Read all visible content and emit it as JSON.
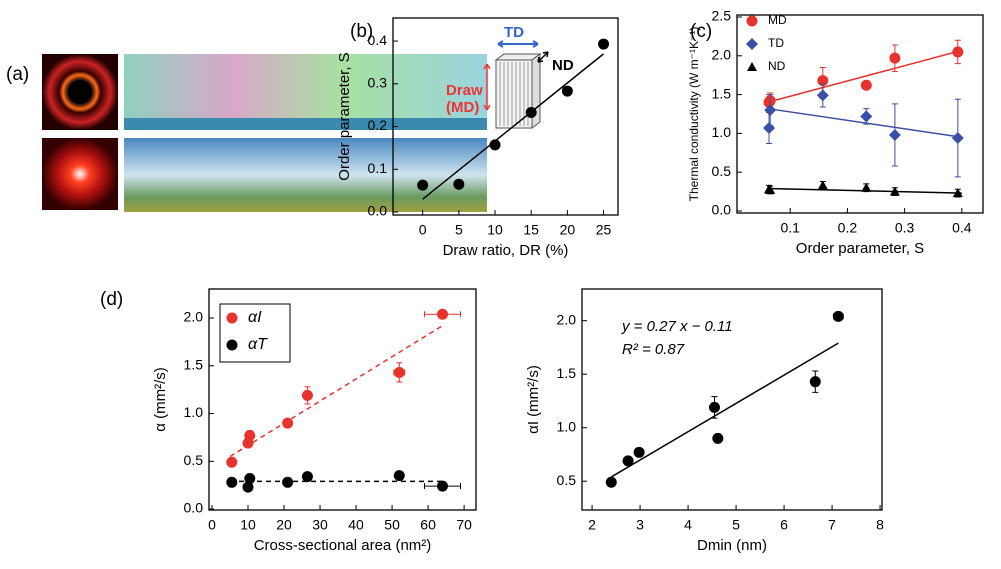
{
  "panel_a": {
    "label": "(a)"
  },
  "chart_data": [
    {
      "type": "scatter",
      "panel_label": "(b)",
      "x_label": "Draw ratio, DR (%)",
      "y_label": "Order parameter, S",
      "annotations": [
        "TD",
        "ND",
        "Draw",
        "(MD)"
      ],
      "xlim": [
        -4.1,
        27
      ],
      "ylim": [
        -0.007,
        0.454
      ],
      "xticks": [
        0,
        5,
        10,
        15,
        20,
        25
      ],
      "yticks": [
        {
          "value": 0,
          "label": "0.0"
        },
        0.1,
        0.2,
        0.3,
        0.4
      ],
      "series": [
        {
          "color": "#000000",
          "marker": "circle",
          "x": [
            0,
            5,
            10,
            15,
            20,
            25
          ],
          "values": [
            0.063,
            0.065,
            0.157,
            0.233,
            0.283,
            0.393
          ],
          "fit": {
            "x": [
              0,
              25
            ],
            "y": [
              0.03,
              0.37
            ]
          }
        }
      ]
    },
    {
      "type": "scatter",
      "panel_label": "(c)",
      "x_label": "Order parameter, S",
      "y_label": "Thermal conductivity (W m⁻¹K⁻¹)",
      "legend": "upper left",
      "xlim": [
        0.007,
        0.437
      ],
      "ylim": [
        -0.026,
        2.526
      ],
      "xticks": [
        0.1,
        0.2,
        0.3,
        0.4
      ],
      "yticks": [
        {
          "value": 0,
          "label": "0.0"
        },
        0.5,
        {
          "value": 1,
          "label": "1.0"
        },
        1.5,
        {
          "value": 2,
          "label": "2.0"
        },
        2.5
      ],
      "series": [
        {
          "name": "MD",
          "color": "#e8322d",
          "marker": "circle",
          "x": [
            0.063,
            0.065,
            0.157,
            0.233,
            0.283,
            0.393
          ],
          "values": [
            1.4,
            1.42,
            1.68,
            1.62,
            1.97,
            2.05
          ],
          "errors": [
            0.1,
            0.1,
            0.17,
            0.05,
            0.17,
            0.15
          ],
          "fit": {
            "x": [
              0.06,
              0.4
            ],
            "y": [
              1.4,
              2.07
            ]
          }
        },
        {
          "name": "TD",
          "color": "#3a4fa8",
          "marker": "diamond",
          "x": [
            0.063,
            0.065,
            0.157,
            0.233,
            0.283,
            0.393
          ],
          "values": [
            1.07,
            1.3,
            1.49,
            1.22,
            0.98,
            0.94
          ],
          "errors": [
            0.2,
            0.2,
            0.15,
            0.1,
            0.4,
            0.5
          ],
          "fit": {
            "x": [
              0.06,
              0.4
            ],
            "y": [
              1.32,
              0.95
            ]
          }
        },
        {
          "name": "ND",
          "color": "#000000",
          "marker": "triangle",
          "x": [
            0.063,
            0.065,
            0.157,
            0.233,
            0.283,
            0.393
          ],
          "values": [
            0.28,
            0.27,
            0.33,
            0.3,
            0.25,
            0.23
          ],
          "errors": [
            0.05,
            0.05,
            0.05,
            0.05,
            0.05,
            0.05
          ],
          "fit": {
            "x": [
              0.06,
              0.4
            ],
            "y": [
              0.29,
              0.23
            ]
          }
        }
      ]
    },
    {
      "type": "scatter",
      "panel_label": "(d)",
      "x_label": "Cross-sectional area (nm²)",
      "y_label": "α (mm²/s)",
      "legend": "upper left",
      "xlim": [
        -0.83,
        73.3
      ],
      "ylim": [
        -0.01,
        2.304
      ],
      "xticks": [
        0,
        10,
        20,
        30,
        40,
        50,
        60,
        70
      ],
      "yticks": [
        {
          "value": 0,
          "label": "0.0"
        },
        0.5,
        {
          "value": 1,
          "label": "1.0"
        },
        1.5,
        {
          "value": 2,
          "label": "2.0"
        }
      ],
      "series": [
        {
          "name": "αI",
          "color": "#e8322d",
          "marker": "circle",
          "x": [
            5.5,
            10,
            10.5,
            21,
            26.5,
            52,
            64
          ],
          "values": [
            0.49,
            0.69,
            0.77,
            0.9,
            1.19,
            1.43,
            2.04
          ],
          "errors": [
            0.02,
            0.04,
            0.05,
            0.03,
            0.09,
            0.1,
            0.03
          ],
          "xerr": [
            0,
            0,
            0,
            0,
            0,
            1.5,
            5
          ],
          "fit": {
            "x": [
              5,
              64
            ],
            "y": [
              0.55,
              1.92
            ]
          },
          "fit_dashed": true
        },
        {
          "name": "αT",
          "color": "#000000",
          "marker": "circle",
          "x": [
            5.5,
            10,
            10.5,
            21,
            26.5,
            52,
            64
          ],
          "values": [
            0.28,
            0.23,
            0.32,
            0.28,
            0.34,
            0.35,
            0.24
          ],
          "errors": [
            0,
            0.03,
            0,
            0,
            0,
            0.03,
            0.02
          ],
          "xerr": [
            0,
            0,
            0,
            0,
            0,
            1,
            5
          ],
          "fit": {
            "x": [
              5,
              64
            ],
            "y": [
              0.29,
              0.29
            ]
          },
          "fit_dashed": true
        }
      ]
    },
    {
      "type": "scatter",
      "x_label": "Dmin (nm)",
      "y_label": "αI (mm²/s)",
      "annotations": [
        "y = 0.27 x − 0.11",
        "R² = 0.87"
      ],
      "xlim": [
        1.79,
        8.04
      ],
      "ylim": [
        0.231,
        2.296
      ],
      "xticks": [
        2,
        3,
        4,
        5,
        6,
        7,
        8
      ],
      "yticks": [
        0.5,
        {
          "value": 1,
          "label": "1.0"
        },
        1.5,
        {
          "value": 2,
          "label": "2.0"
        }
      ],
      "series": [
        {
          "color": "#000000",
          "marker": "circle",
          "x": [
            2.4,
            2.75,
            2.98,
            4.55,
            4.62,
            6.65,
            7.13
          ],
          "values": [
            0.49,
            0.69,
            0.77,
            1.19,
            0.9,
            1.43,
            2.04
          ],
          "errors": [
            0.02,
            0.03,
            0.03,
            0.1,
            0.04,
            0.1,
            0.04
          ],
          "xerr": [
            0,
            0,
            0,
            0,
            0,
            0,
            0.1
          ],
          "fit": {
            "x": [
              2.4,
              7.13
            ],
            "y": [
              0.54,
              1.79
            ]
          }
        }
      ]
    }
  ]
}
